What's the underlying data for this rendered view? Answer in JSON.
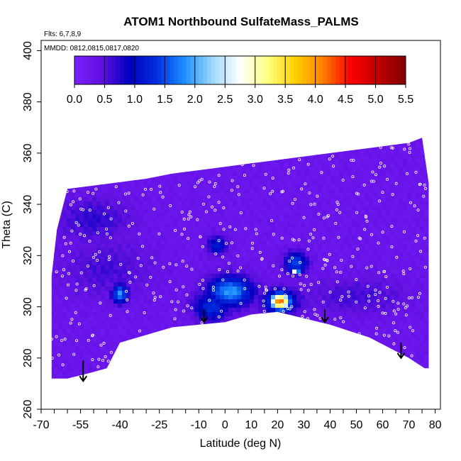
{
  "chart_data": {
    "type": "heatmap",
    "title": "ATOM1 Northbound SulfateMass_PALMS",
    "flights_note": "Flts: 6,7,8,9",
    "dates_note": "MMDD: 0812,0815,0817,0820",
    "xlabel": "Latitude (deg N)",
    "ylabel": "Theta (C)",
    "xlim": [
      -70,
      82
    ],
    "ylim": [
      260,
      404
    ],
    "x_ticks": [
      "-70",
      "-55",
      "-40",
      "-25",
      "-10",
      "0",
      "10",
      "20",
      "30",
      "40",
      "50",
      "60",
      "70",
      "80"
    ],
    "x_tick_values": [
      -70,
      -55,
      -40,
      -25,
      -10,
      0,
      10,
      20,
      30,
      40,
      50,
      60,
      70,
      80
    ],
    "x_minor_step": 5,
    "y_ticks": [
      "260",
      "280",
      "300",
      "320",
      "340",
      "360",
      "380",
      "400"
    ],
    "y_tick_values": [
      260,
      280,
      300,
      320,
      340,
      360,
      380,
      400
    ],
    "colorbar": {
      "ticks": [
        "0.0",
        "0.5",
        "1.0",
        "1.5",
        "2.0",
        "2.5",
        "3.0",
        "3.5",
        "4.0",
        "4.5",
        "5.0",
        "5.5"
      ],
      "tick_values": [
        0,
        0.5,
        1.0,
        1.5,
        2.0,
        2.5,
        3.0,
        3.5,
        4.0,
        4.5,
        5.0,
        5.5
      ],
      "range": [
        0,
        5.5
      ],
      "colors": [
        "#7b1fff",
        "#6010e0",
        "#0000c0",
        "#0030e0",
        "#1e90ff",
        "#9fd8ff",
        "#ffffff",
        "#ffff80",
        "#ffd000",
        "#ff8000",
        "#ff0000",
        "#c00000",
        "#800000"
      ]
    },
    "field": {
      "background_value": 0.3,
      "upper_boundary": [
        [
          -66,
          312
        ],
        [
          -64,
          330
        ],
        [
          -60,
          346
        ],
        [
          -45,
          348
        ],
        [
          -30,
          350
        ],
        [
          -20,
          352
        ],
        [
          -5,
          354
        ],
        [
          10,
          356
        ],
        [
          25,
          358
        ],
        [
          40,
          360
        ],
        [
          55,
          362
        ],
        [
          70,
          364
        ],
        [
          75,
          366
        ],
        [
          78,
          345
        ],
        [
          80,
          312
        ]
      ],
      "lower_boundary": [
        [
          80,
          276
        ],
        [
          76,
          276
        ],
        [
          70,
          280
        ],
        [
          55,
          288
        ],
        [
          40,
          293
        ],
        [
          28,
          296
        ],
        [
          20,
          298
        ],
        [
          10,
          297
        ],
        [
          0,
          294
        ],
        [
          -10,
          293
        ],
        [
          -20,
          292
        ],
        [
          -30,
          289
        ],
        [
          -40,
          286
        ],
        [
          -45,
          276
        ],
        [
          -52,
          274
        ],
        [
          -60,
          272
        ],
        [
          -66,
          272
        ]
      ],
      "features": [
        {
          "name": "low-band-north",
          "lat": 50,
          "theta": 304,
          "val": 0.6,
          "sx": 14,
          "sy": 5
        },
        {
          "name": "low-band-south",
          "lat": -45,
          "theta": 315,
          "val": 0.6,
          "sx": 12,
          "sy": 8
        },
        {
          "name": "cyan-tropical",
          "lat": 2,
          "theta": 306,
          "val": 1.9,
          "sx": 6,
          "sy": 4
        },
        {
          "name": "blue-tropical",
          "lat": -5,
          "theta": 300,
          "val": 1.3,
          "sx": 5,
          "sy": 4
        },
        {
          "name": "pocket-south",
          "lat": -40,
          "theta": 305,
          "val": 1.9,
          "sx": 2,
          "sy": 2.5
        },
        {
          "name": "hotspot",
          "lat": 21,
          "theta": 302,
          "val": 4.3,
          "sx": 2.6,
          "sy": 2.2
        },
        {
          "name": "hotspot-rim",
          "lat": 21,
          "theta": 302,
          "val": 1.5,
          "sx": 5,
          "sy": 3.5
        },
        {
          "name": "upper-pocket-a",
          "lat": 27,
          "theta": 317,
          "val": 1.5,
          "sx": 3,
          "sy": 3
        },
        {
          "name": "upper-pocket-b",
          "lat": -3,
          "theta": 324,
          "val": 1.2,
          "sx": 2.5,
          "sy": 2.5
        },
        {
          "name": "orange-spot",
          "lat": 27,
          "theta": 314,
          "val": 3.6,
          "sx": 0.8,
          "sy": 0.8
        },
        {
          "name": "dark-south-upper",
          "lat": -50,
          "theta": 334,
          "val": 0.7,
          "sx": 10,
          "sy": 6
        }
      ]
    },
    "arrows": [
      {
        "lat": -54,
        "theta_top": 279,
        "theta_tip": 271
      },
      {
        "lat": -8,
        "theta_top": 299,
        "theta_tip": 294
      },
      {
        "lat": 38,
        "theta_top": 299,
        "theta_tip": 294
      },
      {
        "lat": 67,
        "theta_top": 286,
        "theta_tip": 280
      }
    ],
    "grid": false,
    "legend": "colorbar top"
  }
}
